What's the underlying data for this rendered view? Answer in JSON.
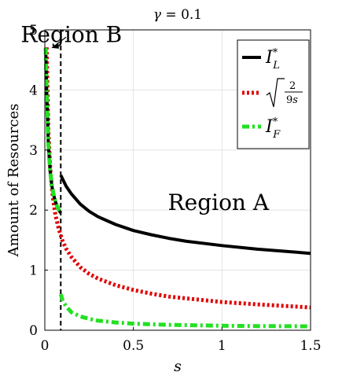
{
  "chart_data": {
    "type": "line",
    "title": "γ = 0.1",
    "xlabel": "s",
    "ylabel": "Amount of Resources",
    "xlim": [
      0,
      1.5
    ],
    "ylim": [
      0,
      5
    ],
    "xticks": [
      0,
      0.5,
      1,
      1.5
    ],
    "xtick_labels": [
      "0",
      "0.5",
      "1",
      "1.5"
    ],
    "yticks": [
      0,
      1,
      2,
      3,
      4,
      5
    ],
    "ytick_labels": [
      "0",
      "1",
      "2",
      "3",
      "4",
      "5"
    ],
    "grid": true,
    "legend_position": "top-right",
    "threshold_s": 0.09,
    "series": [
      {
        "name": "I_L*",
        "style": "solid",
        "color": "#000000",
        "segments": [
          {
            "x": [
              0.005,
              0.01,
              0.02,
              0.03,
              0.04,
              0.05,
              0.06,
              0.07,
              0.08,
              0.09
            ],
            "y": [
              4.7,
              4.0,
              3.1,
              2.65,
              2.4,
              2.25,
              2.14,
              2.06,
              2.0,
              1.95
            ]
          },
          {
            "x": [
              0.09,
              0.12,
              0.15,
              0.2,
              0.25,
              0.3,
              0.4,
              0.5,
              0.6,
              0.7,
              0.8,
              1.0,
              1.2,
              1.5
            ],
            "y": [
              2.58,
              2.4,
              2.27,
              2.1,
              1.98,
              1.89,
              1.76,
              1.66,
              1.59,
              1.53,
              1.48,
              1.41,
              1.35,
              1.28
            ]
          }
        ]
      },
      {
        "name": "√(2/(9s))",
        "style": "dotted",
        "color": "#e00000",
        "segments": [
          {
            "x": [
              0.01,
              0.02,
              0.03,
              0.04,
              0.05,
              0.06,
              0.08,
              0.1,
              0.12,
              0.15,
              0.2,
              0.25,
              0.3,
              0.4,
              0.5,
              0.6,
              0.7,
              0.8,
              1.0,
              1.2,
              1.5
            ],
            "y": [
              4.71,
              3.33,
              2.72,
              2.36,
              2.11,
              1.92,
              1.67,
              1.49,
              1.36,
              1.22,
              1.05,
              0.94,
              0.86,
              0.75,
              0.67,
              0.61,
              0.56,
              0.53,
              0.47,
              0.43,
              0.38
            ]
          }
        ]
      },
      {
        "name": "I_F*",
        "style": "dash-dot",
        "color": "#22e022",
        "segments": [
          {
            "x": [
              0.005,
              0.01,
              0.02,
              0.03,
              0.04,
              0.05,
              0.06,
              0.07,
              0.08,
              0.09
            ],
            "y": [
              4.7,
              4.0,
              3.1,
              2.65,
              2.4,
              2.25,
              2.14,
              2.06,
              2.0,
              1.95
            ]
          },
          {
            "x": [
              0.09,
              0.1,
              0.12,
              0.15,
              0.2,
              0.25,
              0.3,
              0.4,
              0.5,
              0.6,
              0.7,
              0.8,
              1.0,
              1.2,
              1.5
            ],
            "y": [
              0.6,
              0.5,
              0.4,
              0.3,
              0.23,
              0.19,
              0.16,
              0.13,
              0.11,
              0.1,
              0.09,
              0.085,
              0.075,
              0.07,
              0.065
            ]
          }
        ]
      }
    ],
    "annotations": [
      {
        "text": "Region A",
        "x": 0.98,
        "y": 2.0
      },
      {
        "text": "Region B",
        "x": 0.15,
        "y": 4.8
      }
    ]
  }
}
